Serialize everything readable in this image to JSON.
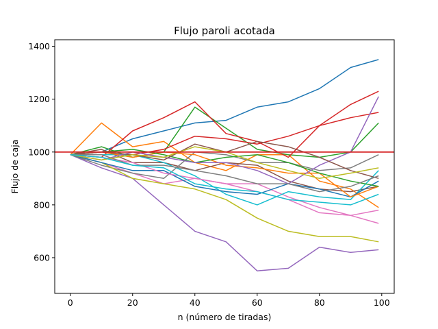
{
  "chart_data": {
    "type": "line",
    "title": "Flujo paroli acotada",
    "xlabel": "n (número de tiradas)",
    "ylabel": "Flujo de caja",
    "xlim": [
      -5,
      104
    ],
    "ylim": [
      465,
      1425
    ],
    "x_ticks": [
      0,
      20,
      40,
      60,
      80,
      100
    ],
    "y_ticks": [
      600,
      800,
      1000,
      1200,
      1400
    ],
    "grid": false,
    "legend": "none",
    "reference_line": {
      "y": 1000,
      "color": "#d62728"
    },
    "x": [
      0,
      10,
      20,
      30,
      40,
      50,
      60,
      70,
      80,
      90,
      99
    ],
    "series": [
      {
        "color": "#1f77b4",
        "values": [
          990,
          1000,
          1050,
          1080,
          1110,
          1120,
          1170,
          1190,
          1240,
          1320,
          1350
        ]
      },
      {
        "color": "#ff7f0e",
        "values": [
          990,
          1110,
          1020,
          1040,
          960,
          930,
          990,
          990,
          890,
          860,
          790
        ]
      },
      {
        "color": "#2ca02c",
        "values": [
          990,
          1020,
          980,
          1000,
          1170,
          1090,
          1010,
          990,
          980,
          1000,
          1110
        ]
      },
      {
        "color": "#d62728",
        "values": [
          990,
          980,
          1080,
          1130,
          1190,
          1070,
          1040,
          980,
          1100,
          1180,
          1230
        ]
      },
      {
        "color": "#9467bd",
        "values": [
          990,
          940,
          900,
          800,
          700,
          660,
          550,
          560,
          640,
          620,
          630
        ]
      },
      {
        "color": "#8c564b",
        "values": [
          990,
          1010,
          960,
          960,
          930,
          960,
          950,
          890,
          860,
          850,
          870
        ]
      },
      {
        "color": "#e377c2",
        "values": [
          990,
          960,
          920,
          880,
          900,
          880,
          880,
          830,
          790,
          760,
          730
        ]
      },
      {
        "color": "#7f7f7f",
        "values": [
          990,
          950,
          920,
          900,
          1000,
          990,
          960,
          960,
          930,
          940,
          990
        ]
      },
      {
        "color": "#bcbd22",
        "values": [
          990,
          960,
          900,
          880,
          860,
          820,
          750,
          700,
          680,
          680,
          660
        ]
      },
      {
        "color": "#17becf",
        "values": [
          990,
          990,
          990,
          960,
          910,
          840,
          800,
          850,
          830,
          820,
          930
        ]
      },
      {
        "color": "#1f77b4",
        "values": [
          990,
          960,
          930,
          930,
          870,
          850,
          840,
          880,
          860,
          830,
          890
        ]
      },
      {
        "color": "#ff7f0e",
        "values": [
          990,
          1000,
          980,
          1000,
          990,
          950,
          940,
          920,
          920,
          830,
          870
        ]
      },
      {
        "color": "#2ca02c",
        "values": [
          990,
          1000,
          1010,
          990,
          960,
          980,
          990,
          960,
          920,
          890,
          870
        ]
      },
      {
        "color": "#d62728",
        "values": [
          990,
          1000,
          990,
          1010,
          1060,
          1050,
          1030,
          1060,
          1100,
          1130,
          1150
        ]
      },
      {
        "color": "#9467bd",
        "values": [
          990,
          970,
          1000,
          980,
          960,
          960,
          930,
          880,
          950,
          1000,
          1210
        ]
      },
      {
        "color": "#8c564b",
        "values": [
          990,
          1000,
          990,
          970,
          1030,
          1000,
          1040,
          1020,
          980,
          930,
          900
        ]
      },
      {
        "color": "#e377c2",
        "values": [
          990,
          980,
          960,
          920,
          900,
          880,
          850,
          820,
          770,
          760,
          780
        ]
      },
      {
        "color": "#7f7f7f",
        "values": [
          990,
          990,
          950,
          950,
          930,
          910,
          880,
          880,
          850,
          870,
          910
        ]
      },
      {
        "color": "#bcbd22",
        "values": [
          990,
          970,
          990,
          980,
          1020,
          1000,
          960,
          930,
          900,
          920,
          940
        ]
      },
      {
        "color": "#17becf",
        "values": [
          990,
          980,
          950,
          940,
          880,
          860,
          850,
          820,
          810,
          800,
          840
        ]
      }
    ]
  }
}
